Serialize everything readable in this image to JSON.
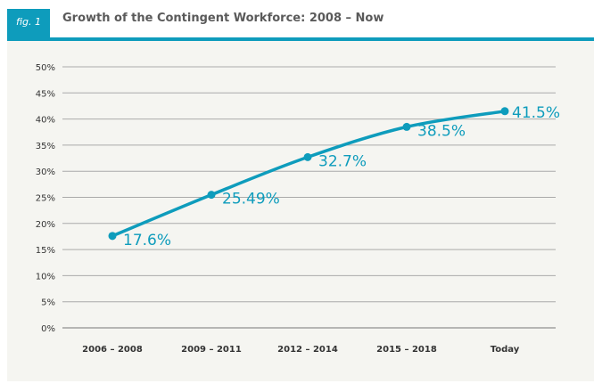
{
  "header": {
    "fig_label": "fig. 1",
    "title": "Growth of the Contingent Workforce: 2008 – Now"
  },
  "chart_data": {
    "type": "line",
    "title": "Growth of the Contingent Workforce: 2008 – Now",
    "categories": [
      "2006 – 2008",
      "2009 – 2011",
      "2012 – 2014",
      "2015 – 2018",
      "Today"
    ],
    "values": [
      17.6,
      25.49,
      32.7,
      38.5,
      41.5
    ],
    "data_labels": [
      "17.6%",
      "25.49%",
      "32.7%",
      "38.5%",
      "41.5%"
    ],
    "yticks": [
      "0%",
      "5%",
      "10%",
      "15%",
      "20%",
      "25%",
      "30%",
      "35%",
      "40%",
      "45%",
      "50%"
    ],
    "ylim": [
      0,
      50
    ],
    "grid": true,
    "color": "#0e9cbc"
  }
}
